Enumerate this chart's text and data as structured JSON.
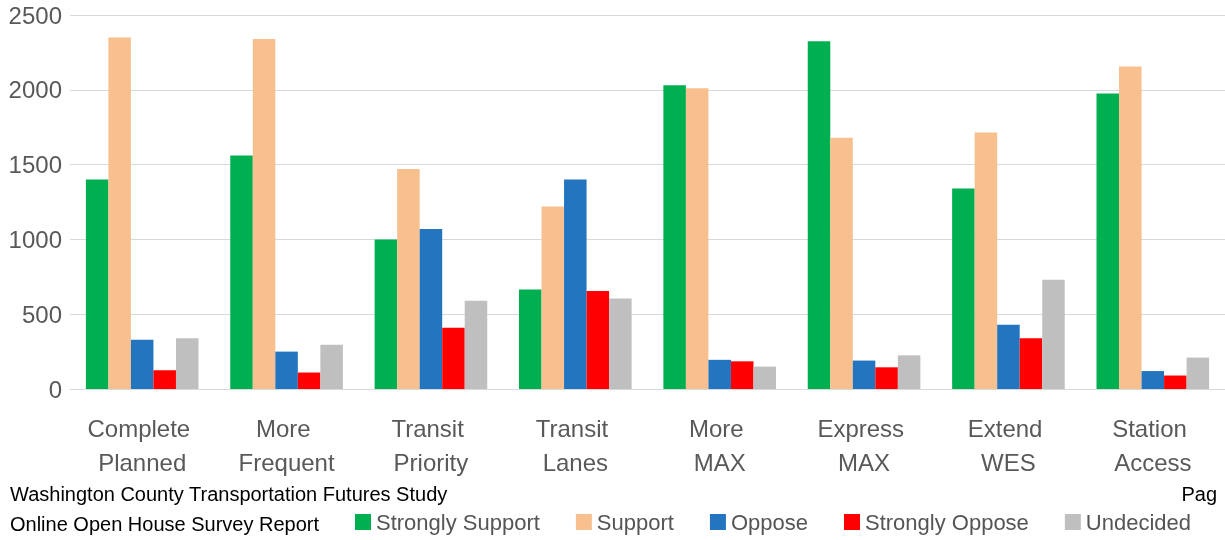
{
  "chart_data": {
    "type": "bar",
    "categories": [
      "Complete Planned",
      "More Frequent",
      "Transit Priority",
      "Transit Lanes",
      "More MAX",
      "Express MAX",
      "Extend WES",
      "Station Access"
    ],
    "series": [
      {
        "name": "Strongly Support",
        "color": "#00b050",
        "values": [
          1400,
          1560,
          1000,
          665,
          2030,
          2325,
          1340,
          1975
        ]
      },
      {
        "name": "Support",
        "color": "#f9c08f",
        "values": [
          2350,
          2340,
          1470,
          1220,
          2010,
          1680,
          1715,
          2155
        ]
      },
      {
        "name": "Oppose",
        "color": "#2475c0",
        "values": [
          330,
          250,
          1070,
          1400,
          195,
          190,
          430,
          120
        ]
      },
      {
        "name": "Strongly Oppose",
        "color": "#ff0000",
        "values": [
          125,
          110,
          410,
          655,
          185,
          145,
          340,
          90
        ]
      },
      {
        "name": "Undecided",
        "color": "#bfbfbf",
        "values": [
          340,
          295,
          590,
          605,
          150,
          225,
          730,
          210
        ]
      }
    ],
    "ylim": [
      0,
      2500
    ],
    "yticks": [
      0,
      500,
      1000,
      1500,
      2000,
      2500
    ],
    "grid": "y",
    "legend": "bottom",
    "annotations": [
      "Washington County Transportation Futures Study",
      "Pag",
      "Online Open House Survey Report"
    ]
  }
}
